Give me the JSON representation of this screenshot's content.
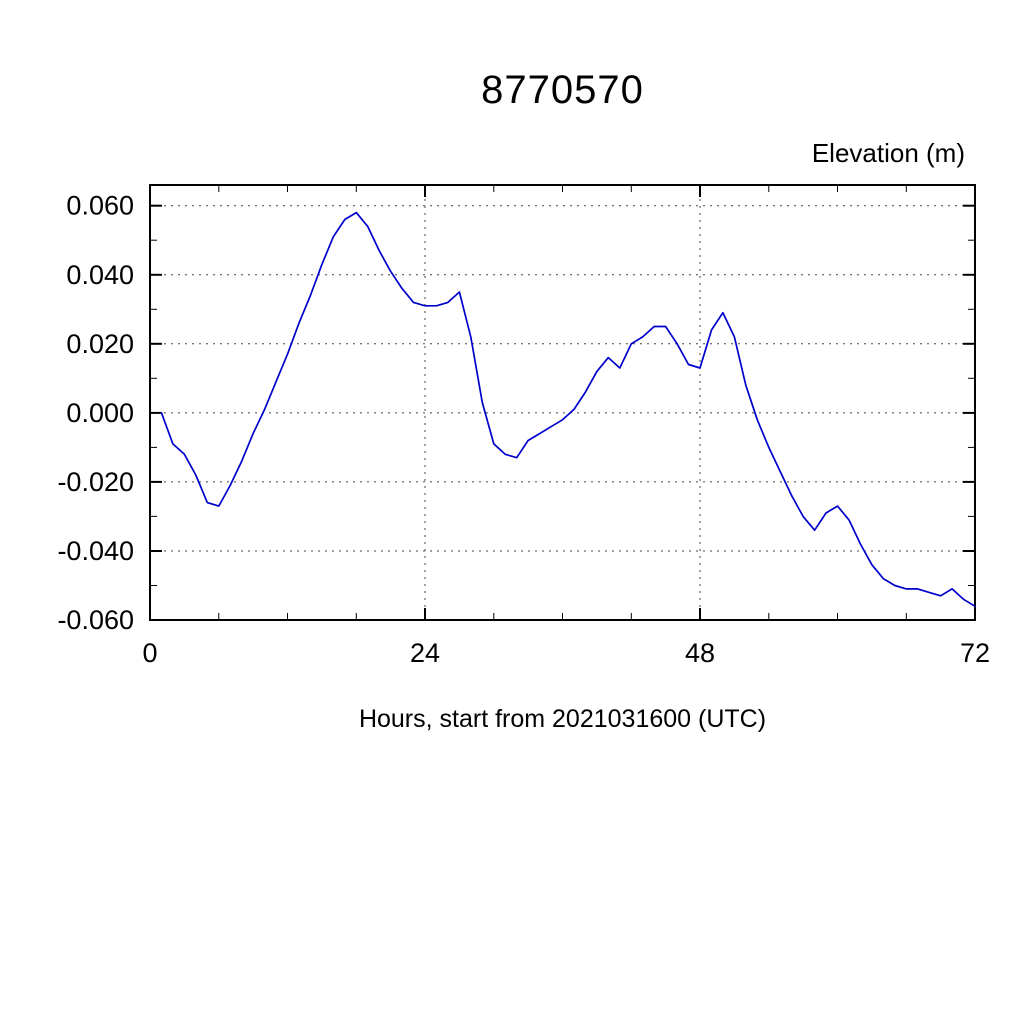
{
  "chart_data": {
    "type": "line",
    "title": "8770570",
    "right_label": "Elevation (m)",
    "xlabel": "Hours, start from 2021031600 (UTC)",
    "ylabel": "",
    "xlim": [
      0,
      72
    ],
    "ylim": [
      -0.06,
      0.06
    ],
    "ylim_draw": [
      -0.06,
      0.066
    ],
    "xticks": [
      0,
      24,
      48,
      72
    ],
    "xtick_labels": [
      "0",
      "24",
      "48",
      "72"
    ],
    "yticks": [
      0.06,
      0.04,
      0.02,
      0.0,
      -0.02,
      -0.04,
      -0.06
    ],
    "ytick_labels": [
      "0.060",
      "0.040",
      "0.020",
      "0.000",
      "-0.020",
      "-0.040",
      "-0.060"
    ],
    "minor_x_step": 6,
    "minor_y_step": 0.01,
    "grid": true,
    "legend": "none",
    "line_color": "#0000cc",
    "series_name": "Elevation (m)",
    "x": [
      1,
      2,
      3,
      4,
      5,
      6,
      7,
      8,
      9,
      10,
      11,
      12,
      13,
      14,
      15,
      16,
      17,
      18,
      19,
      20,
      21,
      22,
      23,
      24,
      25,
      26,
      27,
      28,
      29,
      30,
      31,
      32,
      33,
      34,
      35,
      36,
      37,
      38,
      39,
      40,
      41,
      42,
      43,
      44,
      45,
      46,
      47,
      48,
      49,
      50,
      51,
      52,
      53,
      54,
      55,
      56,
      57,
      58,
      59,
      60,
      61,
      62,
      63,
      64,
      65,
      66,
      67,
      68,
      69,
      70,
      71,
      72
    ],
    "y": [
      0.0,
      -0.009,
      -0.012,
      -0.018,
      -0.026,
      -0.027,
      -0.021,
      -0.014,
      -0.006,
      0.001,
      0.009,
      0.017,
      0.026,
      0.034,
      0.043,
      0.051,
      0.056,
      0.058,
      0.054,
      0.047,
      0.041,
      0.036,
      0.032,
      0.031,
      0.031,
      0.032,
      0.035,
      0.022,
      0.003,
      -0.009,
      -0.012,
      -0.013,
      -0.008,
      -0.006,
      -0.004,
      -0.002,
      0.001,
      0.006,
      0.012,
      0.016,
      0.013,
      0.02,
      0.022,
      0.025,
      0.025,
      0.02,
      0.014,
      0.013,
      0.024,
      0.029,
      0.022,
      0.008,
      -0.002,
      -0.01,
      -0.017,
      -0.024,
      -0.03,
      -0.034,
      -0.029,
      -0.027,
      -0.031,
      -0.038,
      -0.044,
      -0.048,
      -0.05,
      -0.051,
      -0.051,
      -0.052,
      -0.053,
      -0.051,
      -0.054,
      -0.056
    ]
  }
}
